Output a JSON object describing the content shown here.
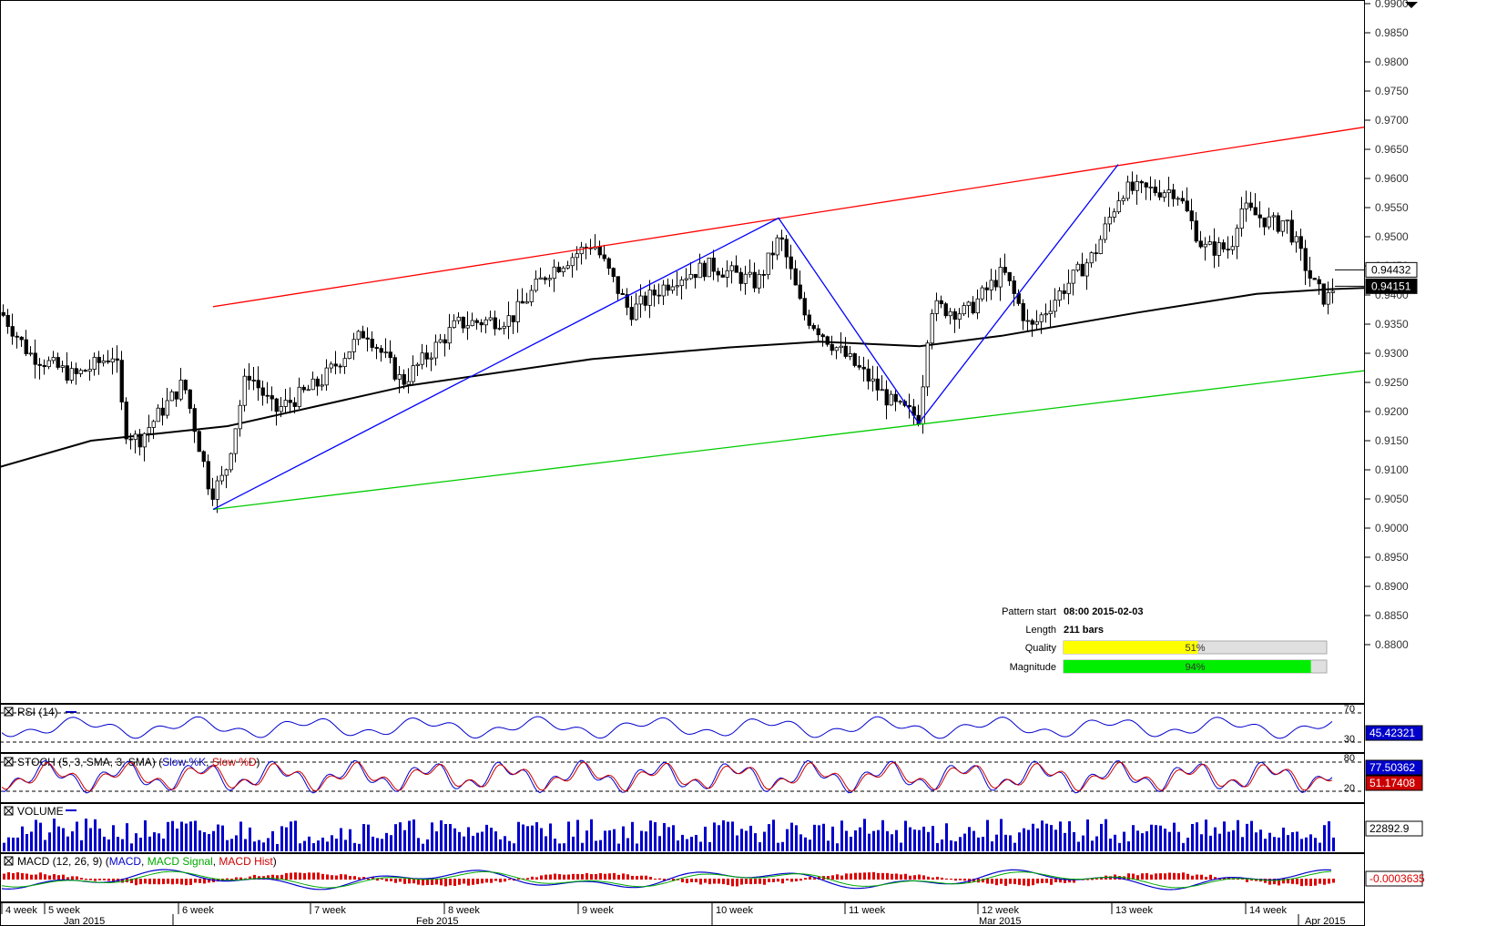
{
  "chart_data": {
    "type": "candlestick",
    "instrument_note": "",
    "price_axis": {
      "ylim": [
        0.875,
        0.99
      ],
      "ticks": [
        "0.9900",
        "0.9850",
        "0.9800",
        "0.9750",
        "0.9700",
        "0.9650",
        "0.9600",
        "0.9550",
        "0.9500",
        "0.9450",
        "0.9400",
        "0.9350",
        "0.9300",
        "0.9250",
        "0.9200",
        "0.9150",
        "0.9100",
        "0.9050",
        "0.9000",
        "0.8950",
        "0.8900",
        "0.8850",
        "0.8800"
      ]
    },
    "current_prices": {
      "ask": "0.94432",
      "bid": "0.94151"
    },
    "pattern": {
      "type": "ascending channel",
      "resistance_line": {
        "start": [
          "2015-02-03",
          0.938
        ],
        "end": [
          "2015-04-01",
          0.9688
        ],
        "color": "#ff0000"
      },
      "support_line": {
        "start": [
          "2015-02-03",
          0.9032
        ],
        "end": [
          "2015-04-01",
          0.927
        ],
        "color": "#00cc00"
      },
      "zigzag": [
        [
          0.9032
        ],
        [
          0.9532
        ],
        [
          0.918
        ],
        [
          0.9624
        ]
      ],
      "zigzag_color": "#0000ff"
    },
    "moving_average_color": "#000000",
    "info": {
      "pattern_start_label": "Pattern start",
      "pattern_start_value": "08:00 2015-02-03",
      "length_label": "Length",
      "length_value": "211 bars",
      "quality_label": "Quality",
      "quality_value": "51%",
      "quality_pct": 51,
      "magnitude_label": "Magnitude",
      "magnitude_value": "94%",
      "magnitude_pct": 94
    },
    "indicators": {
      "rsi": {
        "title": "RSI (14)",
        "value": "45.42321",
        "levels": [
          "70",
          "50.00",
          "30"
        ]
      },
      "stoch": {
        "title": "STOCH (5, 3, SMA, 3, SMA)",
        "legend": [
          "Slow %K",
          "Slow %D"
        ],
        "value_k": "77.50362",
        "value_d": "51.17408",
        "levels": [
          "80",
          "20"
        ]
      },
      "volume": {
        "title": "VOLUME",
        "value": "22892.9"
      },
      "macd": {
        "title": "MACD (12, 26, 9)",
        "legend": [
          "MACD",
          "MACD Signal",
          "MACD Hist"
        ],
        "value": "-0.0003635"
      }
    },
    "x_axis": {
      "weeks": [
        "4 week",
        "5 week",
        "6 week",
        "7 week",
        "8 week",
        "9 week",
        "10 week",
        "11 week",
        "12 week",
        "13 week",
        "14 week"
      ],
      "months": [
        "Jan 2015",
        "Feb 2015",
        "Mar 2015",
        "Apr 2015"
      ]
    }
  }
}
